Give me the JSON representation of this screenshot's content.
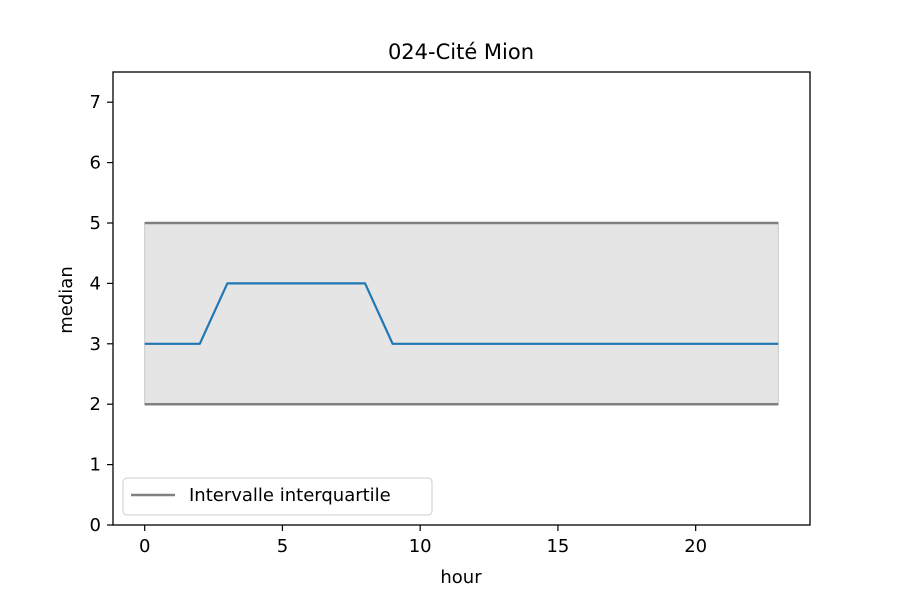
{
  "chart_data": {
    "type": "line",
    "title": "024-Cité Mion",
    "xlabel": "hour",
    "ylabel": "median",
    "xlim": [
      -1.15,
      24.15
    ],
    "ylim": [
      0,
      7.5
    ],
    "x_ticks": [
      0,
      5,
      10,
      15,
      20
    ],
    "y_ticks": [
      0,
      1,
      2,
      3,
      4,
      5,
      6,
      7
    ],
    "x": [
      0,
      1,
      2,
      3,
      4,
      5,
      6,
      7,
      8,
      9,
      10,
      11,
      12,
      13,
      14,
      15,
      16,
      17,
      18,
      19,
      20,
      21,
      22,
      23
    ],
    "series": [
      {
        "values": [
          3,
          3,
          3,
          4,
          4,
          4,
          4,
          4,
          4,
          3,
          3,
          3,
          3,
          3,
          3,
          3,
          3,
          3,
          3,
          3,
          3,
          3,
          3,
          3
        ],
        "color": "#1f77b4"
      }
    ],
    "band": {
      "name": "Intervalle interquartile",
      "lower": [
        2,
        2,
        2,
        2,
        2,
        2,
        2,
        2,
        2,
        2,
        2,
        2,
        2,
        2,
        2,
        2,
        2,
        2,
        2,
        2,
        2,
        2,
        2,
        2
      ],
      "upper": [
        5,
        5,
        5,
        5,
        5,
        5,
        5,
        5,
        5,
        5,
        5,
        5,
        5,
        5,
        5,
        5,
        5,
        5,
        5,
        5,
        5,
        5,
        5,
        5
      ],
      "line_color": "#808080",
      "fill_color": "#e5e5e5"
    },
    "legend": {
      "placement": "lower-left",
      "entries": [
        "Intervalle interquartile"
      ]
    },
    "grid": false
  }
}
